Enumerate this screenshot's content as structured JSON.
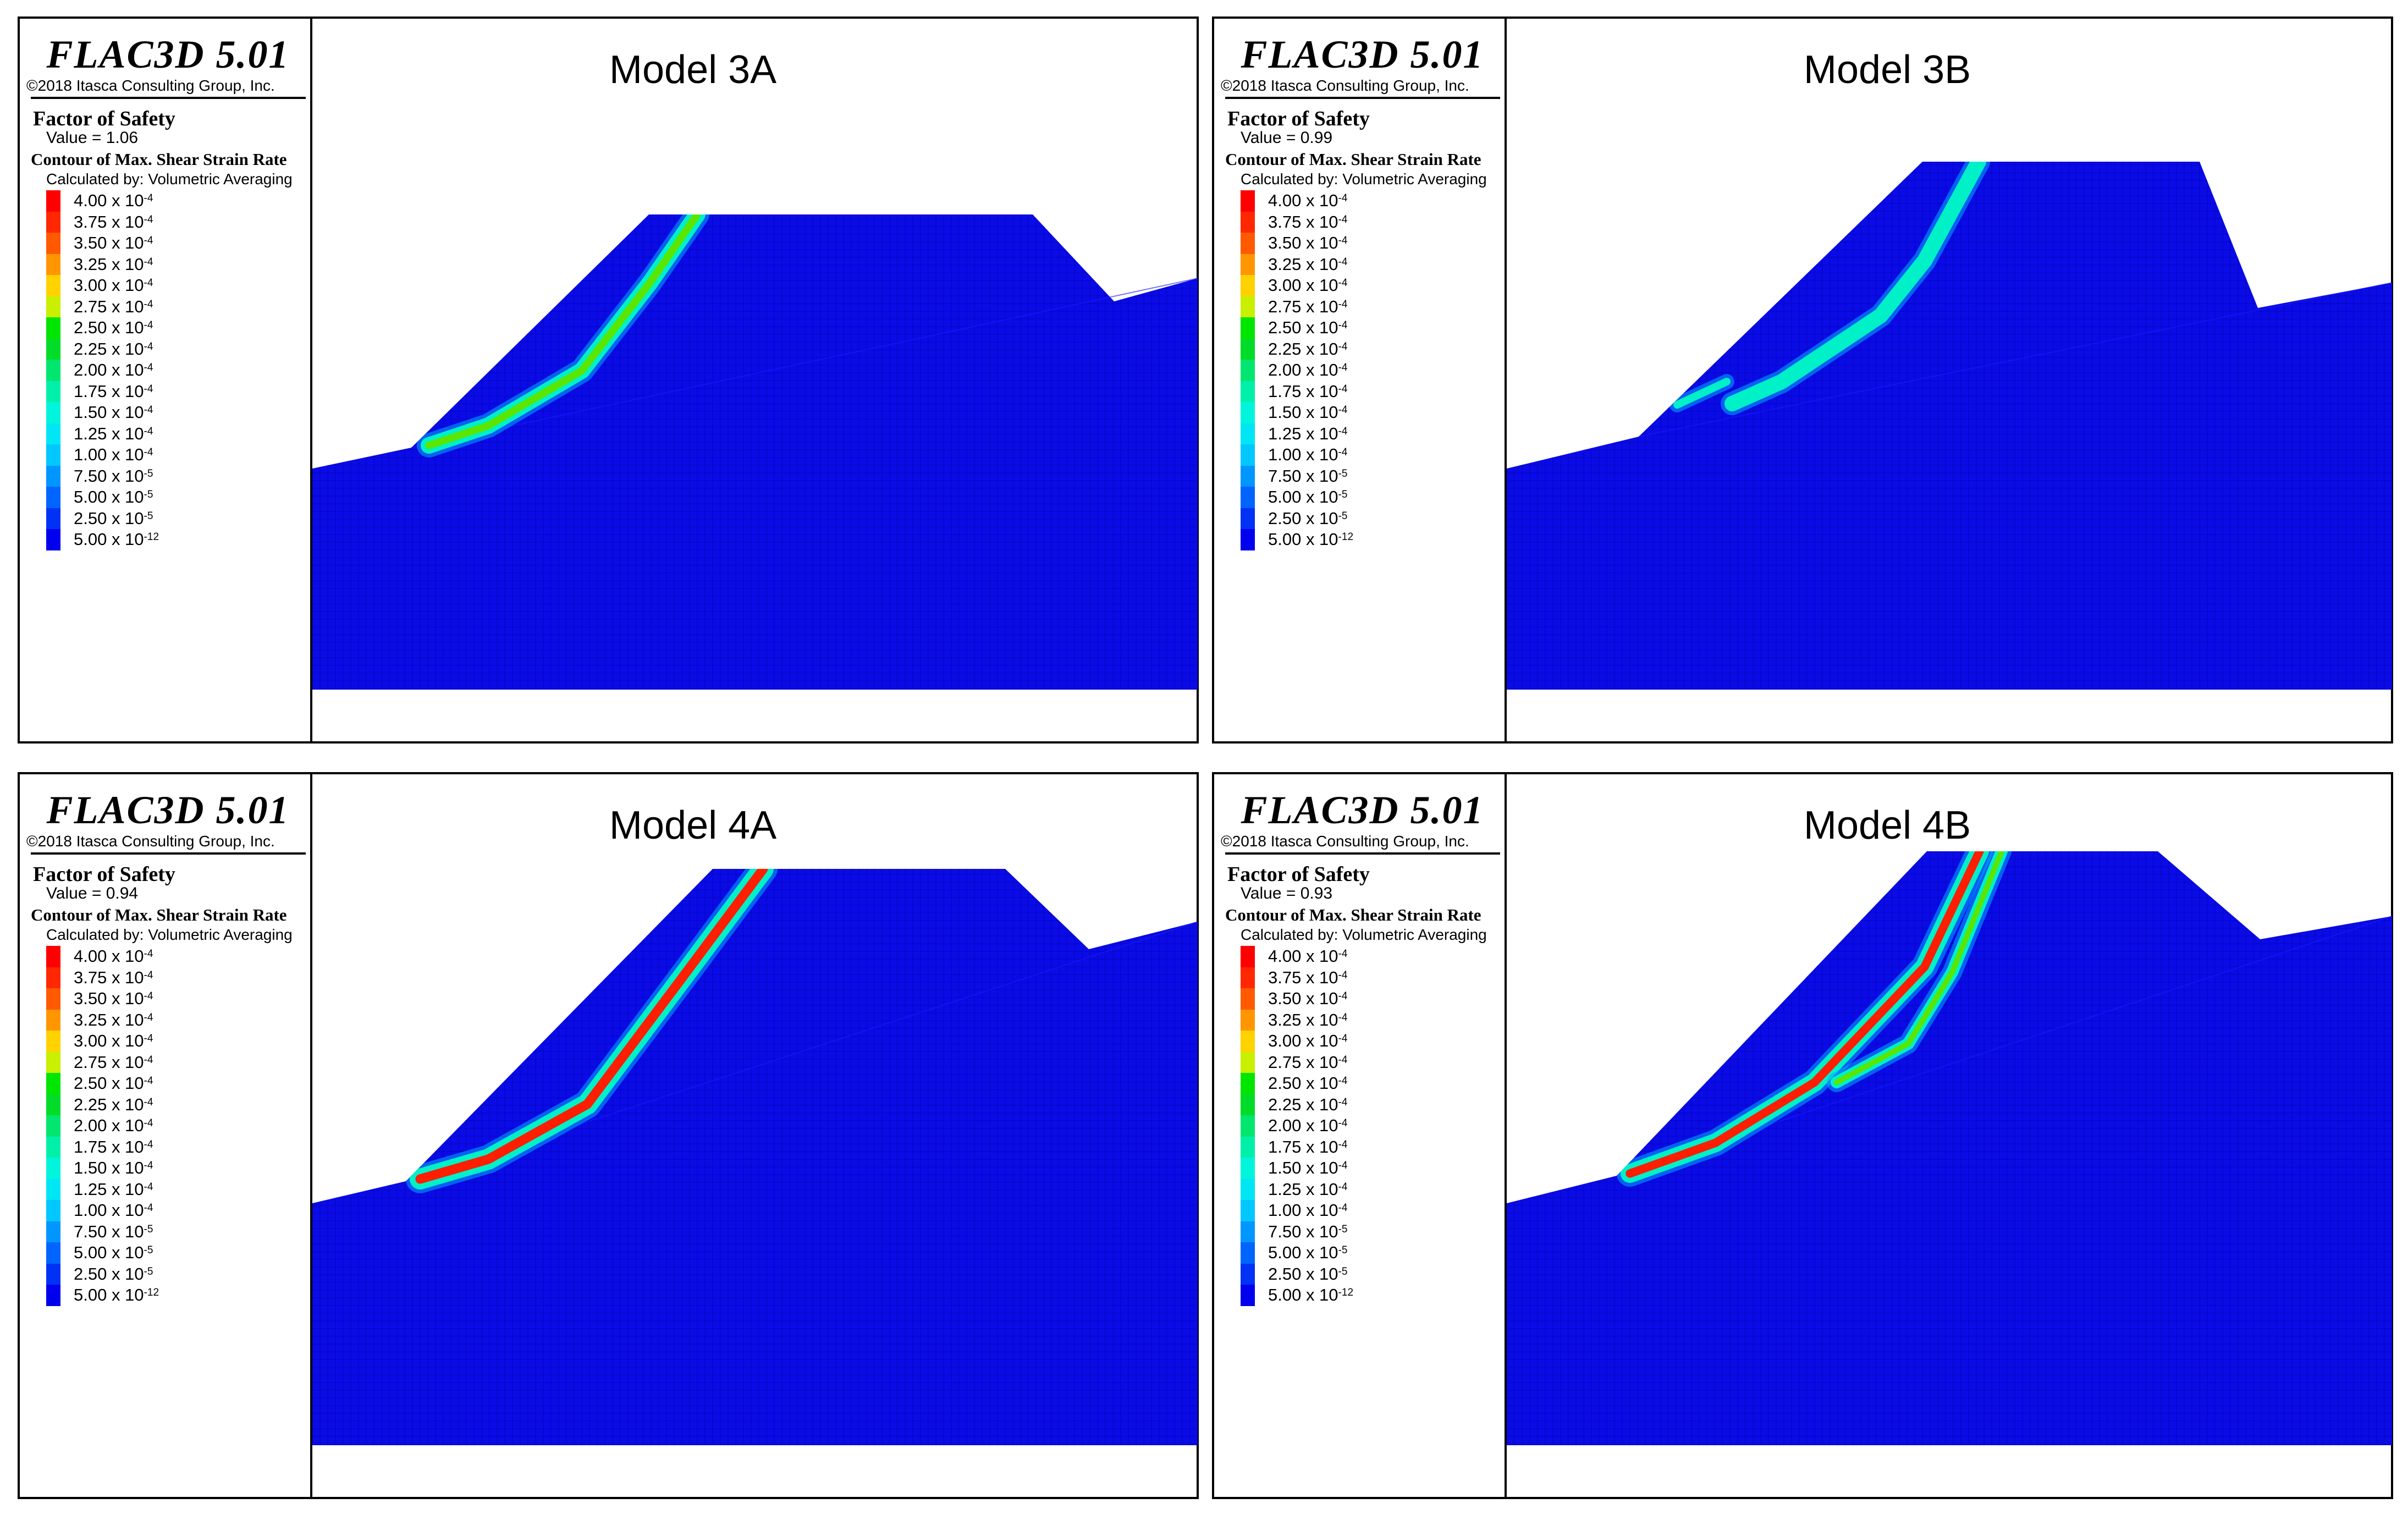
{
  "brand": "FLAC3D 5.01",
  "copyright": "©2018 Itasca Consulting Group, Inc.",
  "legend_common": {
    "fos_title": "Factor of Safety",
    "contour_title": "Contour of Max. Shear Strain Rate",
    "calc_text": "Calculated by: Volumetric Averaging"
  },
  "color_scale": [
    {
      "mant": "4.00 x 10",
      "exp": "-4",
      "color": "#ff0000"
    },
    {
      "mant": "3.75 x 10",
      "exp": "-4",
      "color": "#ff2800"
    },
    {
      "mant": "3.50 x 10",
      "exp": "-4",
      "color": "#ff5a00"
    },
    {
      "mant": "3.25 x 10",
      "exp": "-4",
      "color": "#ff9600"
    },
    {
      "mant": "3.00 x 10",
      "exp": "-4",
      "color": "#ffd200"
    },
    {
      "mant": "2.75 x 10",
      "exp": "-4",
      "color": "#c8f000"
    },
    {
      "mant": "2.50 x 10",
      "exp": "-4",
      "color": "#00e600"
    },
    {
      "mant": "2.25 x 10",
      "exp": "-4",
      "color": "#00dc28"
    },
    {
      "mant": "2.00 x 10",
      "exp": "-4",
      "color": "#00e66e"
    },
    {
      "mant": "1.75 x 10",
      "exp": "-4",
      "color": "#00f0aa"
    },
    {
      "mant": "1.50 x 10",
      "exp": "-4",
      "color": "#00f5dc"
    },
    {
      "mant": "1.25 x 10",
      "exp": "-4",
      "color": "#00e6f5"
    },
    {
      "mant": "1.00 x 10",
      "exp": "-4",
      "color": "#00c8ff"
    },
    {
      "mant": "7.50 x 10",
      "exp": "-5",
      "color": "#0096ff"
    },
    {
      "mant": "5.00 x 10",
      "exp": "-5",
      "color": "#0064ff"
    },
    {
      "mant": "2.50 x 10",
      "exp": "-5",
      "color": "#0032f5"
    },
    {
      "mant": "5.00 x 10",
      "exp": "-12",
      "color": "#0000ee"
    }
  ],
  "panels": [
    {
      "id": "3A",
      "title": "Model 3A",
      "fos_value": "Value = 1.06"
    },
    {
      "id": "3B",
      "title": "Model 3B",
      "fos_value": "Value = 0.99"
    },
    {
      "id": "4A",
      "title": "Model 4A",
      "fos_value": "Value = 0.94"
    },
    {
      "id": "4B",
      "title": "Model 4B",
      "fos_value": "Value = 0.93"
    }
  ],
  "colors": {
    "mesh_fill": "#0a0be6",
    "mesh_line": "#0000a0",
    "band_low": "#00f0c8",
    "band_mid": "#5ae600",
    "band_high": "#ff1e00"
  }
}
